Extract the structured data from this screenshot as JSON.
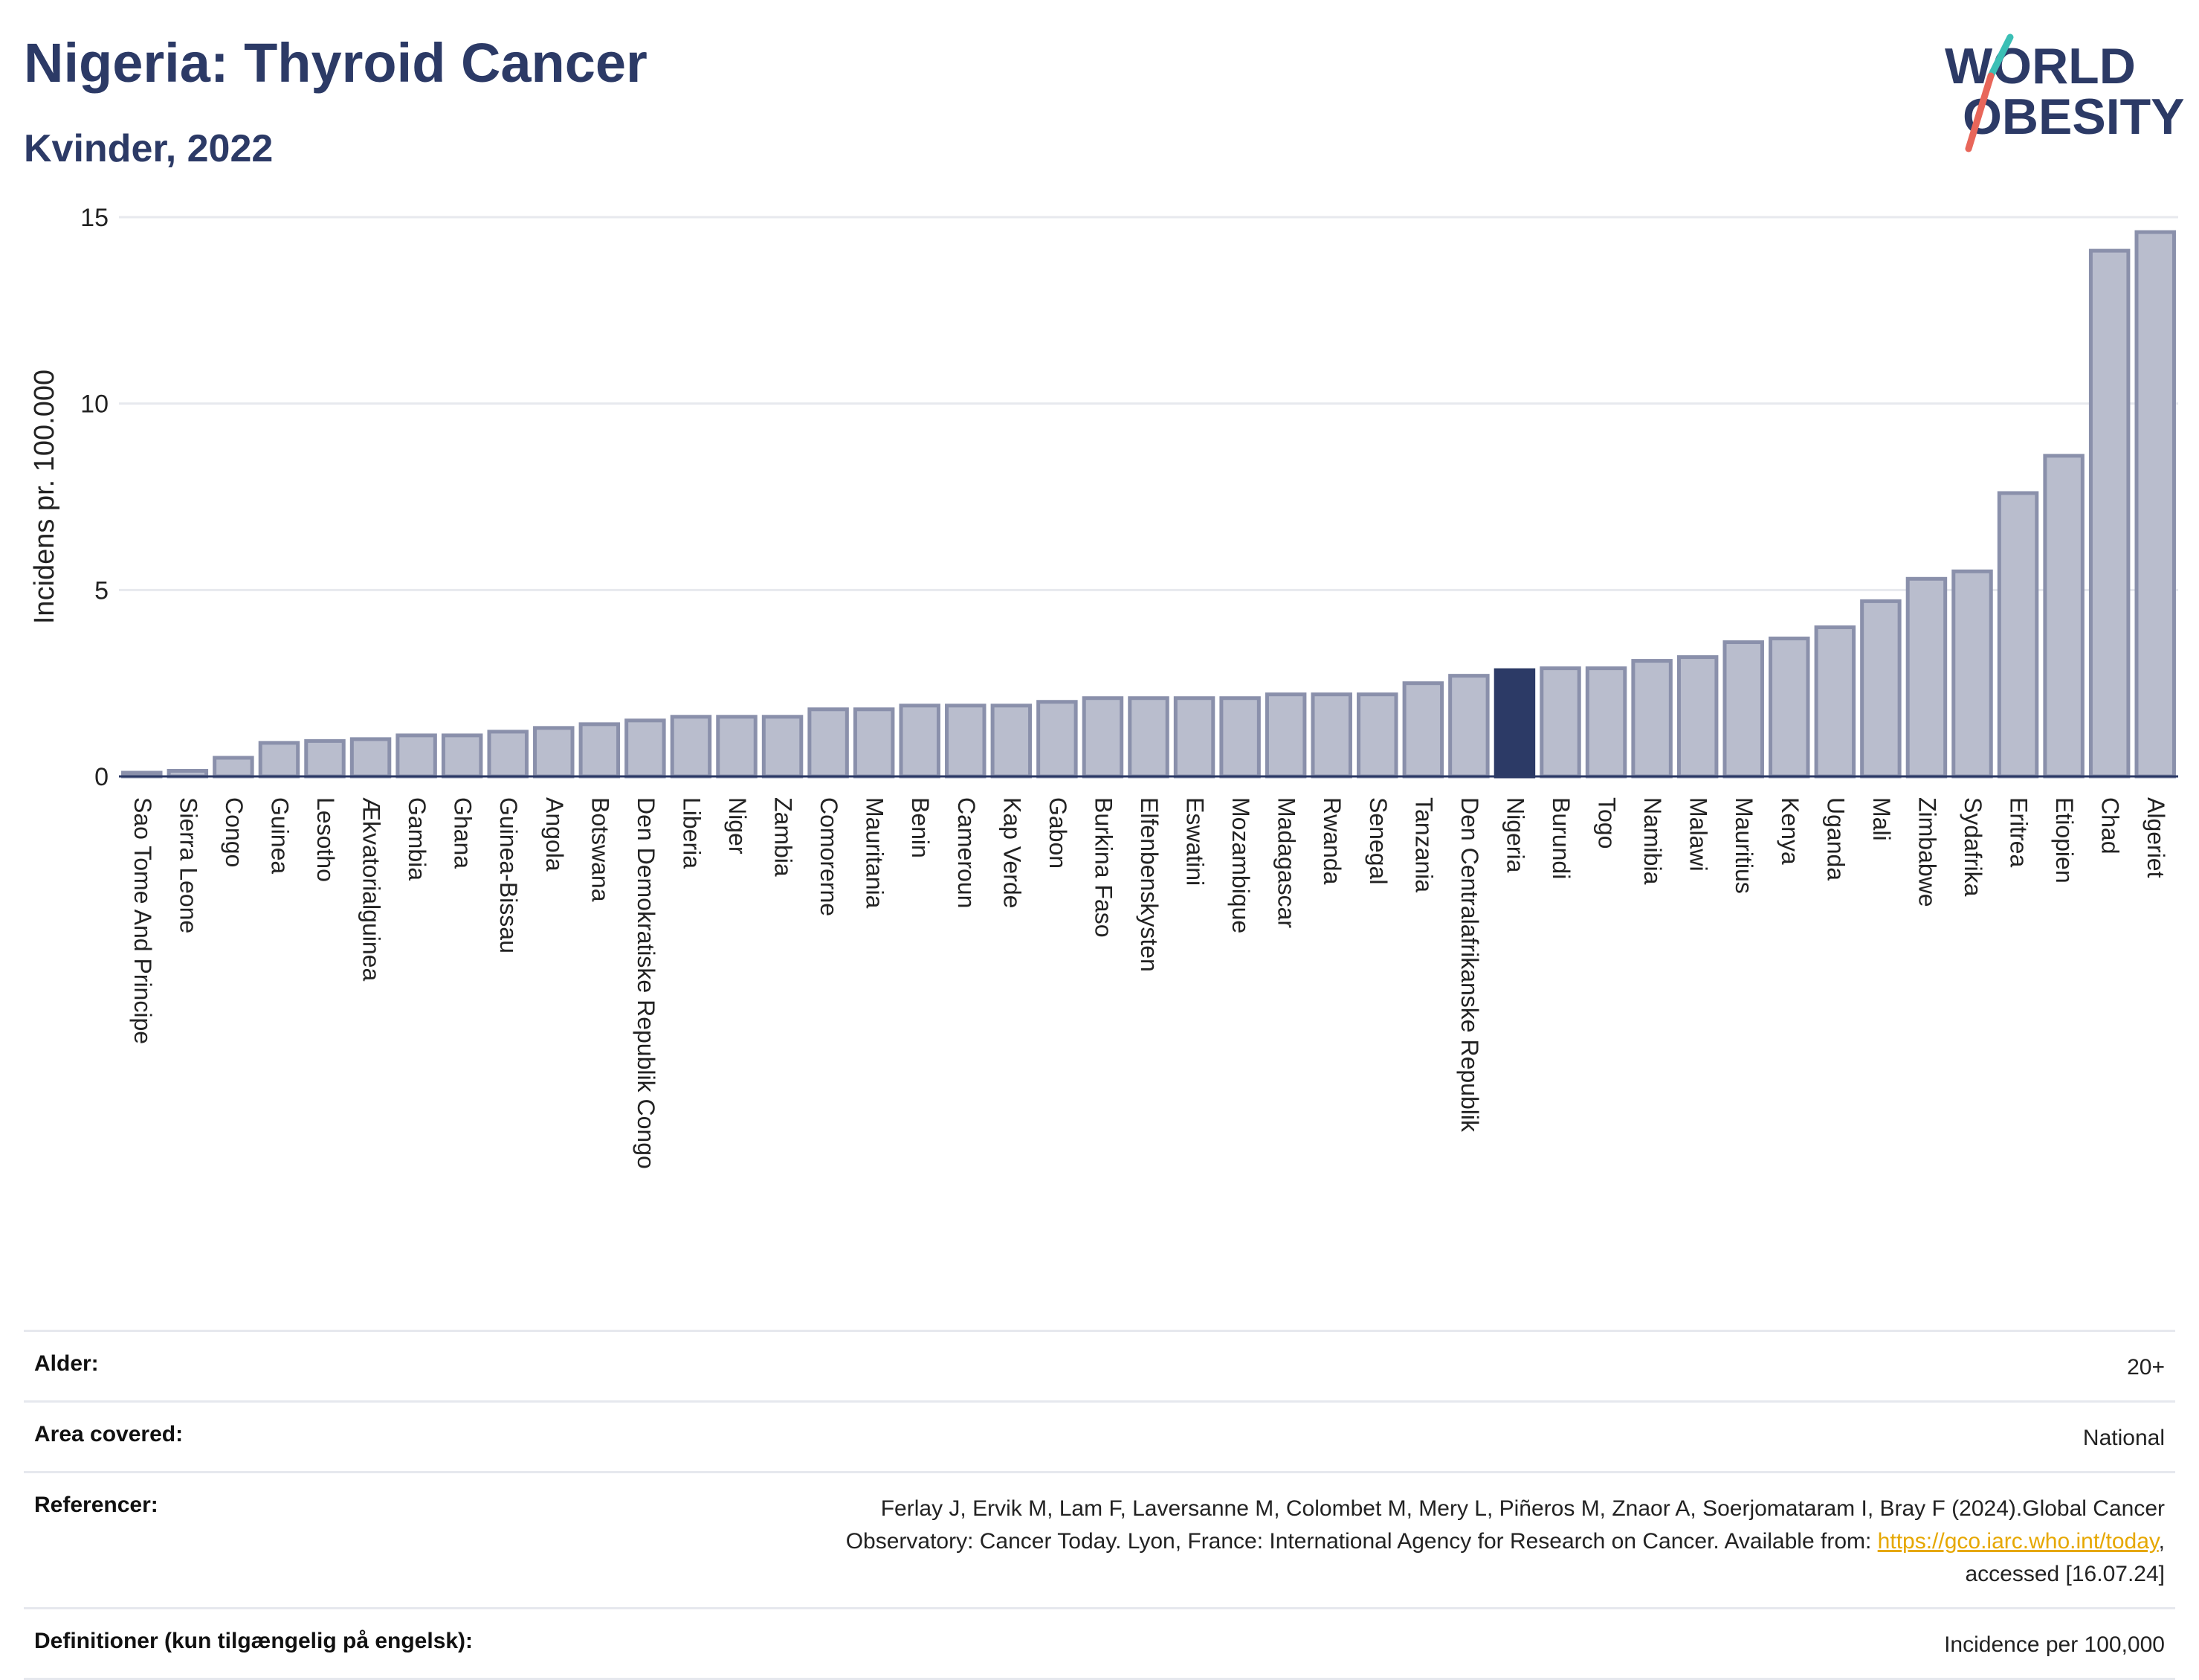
{
  "title": "Nigeria: Thyroid Cancer",
  "subtitle": "Kvinder, 2022",
  "logo": {
    "line1": "WORLD",
    "line2": "OBESITY"
  },
  "colors": {
    "bar": "#b9bdcd",
    "bar_border": "#8a90ab",
    "highlight": "#2c3a66",
    "grid": "#e7e9ee",
    "logo_teal": "#3bbfb5",
    "logo_coral": "#e8665a",
    "logo_navy": "#2c3a66"
  },
  "chart_data": {
    "type": "bar",
    "categories": [
      "Sao Tome And Principe",
      "Sierra Leone",
      "Congo",
      "Guinea",
      "Lesotho",
      "Ækvatorialguinea",
      "Gambia",
      "Ghana",
      "Guinea-Bissau",
      "Angola",
      "Botswana",
      "Den Demokratiske Republik Congo",
      "Liberia",
      "Niger",
      "Zambia",
      "Comorerne",
      "Mauritania",
      "Benin",
      "Cameroun",
      "Kap Verde",
      "Gabon",
      "Burkina Faso",
      "Elfenbenskysten",
      "Eswatini",
      "Mozambique",
      "Madagascar",
      "Rwanda",
      "Senegal",
      "Tanzania",
      "Den Centralafrikanske Republik",
      "Nigeria",
      "Burundi",
      "Togo",
      "Namibia",
      "Malawi",
      "Mauritius",
      "Kenya",
      "Uganda",
      "Mali",
      "Zimbabwe",
      "Sydafrika",
      "Eritrea",
      "Etiopien",
      "Chad",
      "Algeriet"
    ],
    "values": [
      0.1,
      0.15,
      0.5,
      0.9,
      0.95,
      1.0,
      1.1,
      1.1,
      1.2,
      1.3,
      1.4,
      1.5,
      1.6,
      1.6,
      1.6,
      1.8,
      1.8,
      1.9,
      1.9,
      1.9,
      2.0,
      2.1,
      2.1,
      2.1,
      2.1,
      2.2,
      2.2,
      2.2,
      2.5,
      2.7,
      2.85,
      2.9,
      2.9,
      3.1,
      3.2,
      3.6,
      3.7,
      4.0,
      4.7,
      5.3,
      5.5,
      7.6,
      8.6,
      14.1,
      14.6
    ],
    "highlight": "Nigeria",
    "ylabel": "Incidens pr. 100.000",
    "xlabel": "",
    "ylim": [
      0,
      15
    ],
    "yticks": [
      0,
      5,
      10,
      15
    ],
    "grid": true
  },
  "info": [
    {
      "label": "Alder:",
      "value": "20+"
    },
    {
      "label": "Area covered:",
      "value": "National"
    },
    {
      "label": "Referencer:",
      "lines": [
        "Ferlay J, Ervik M, Lam F, Laversanne M, Colombet M, Mery L, Piñeros M, Znaor A, Soerjomataram I, Bray F (2024).Global Cancer",
        "Observatory: Cancer Today. Lyon, France: International Agency for Research on Cancer. Available from: "
      ],
      "link": "https://gco.iarc.who.int/today",
      "after_link": ",",
      "last_line": "accessed [16.07.24]"
    },
    {
      "label": "Definitioner (kun tilgængelig på engelsk):",
      "value": "Incidence per 100,000"
    }
  ]
}
